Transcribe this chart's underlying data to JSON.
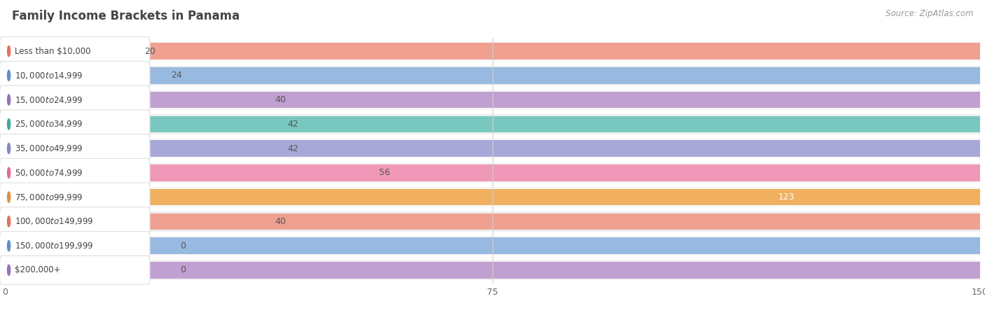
{
  "title": "Family Income Brackets in Panama",
  "source": "Source: ZipAtlas.com",
  "categories": [
    "Less than $10,000",
    "$10,000 to $14,999",
    "$15,000 to $24,999",
    "$25,000 to $34,999",
    "$35,000 to $49,999",
    "$50,000 to $74,999",
    "$75,000 to $99,999",
    "$100,000 to $149,999",
    "$150,000 to $199,999",
    "$200,000+"
  ],
  "values": [
    20,
    24,
    40,
    42,
    42,
    56,
    123,
    40,
    0,
    0
  ],
  "bar_colors": [
    "#F0A090",
    "#98BAE0",
    "#C0A0D0",
    "#78C8C0",
    "#A8A8D8",
    "#F098B8",
    "#F0B060",
    "#F0A090",
    "#98BAE0",
    "#C0A0D0"
  ],
  "dot_colors": [
    "#E87060",
    "#6090C8",
    "#9870C0",
    "#40A8A0",
    "#8888C8",
    "#E86898",
    "#E09040",
    "#E07060",
    "#6090C8",
    "#9870C0"
  ],
  "xlim": [
    0,
    150
  ],
  "xticks": [
    0,
    75,
    150
  ],
  "background_color": "#ffffff",
  "row_colors": [
    "#f7f7f7",
    "#efefef"
  ],
  "grid_color": "#d0d0d0",
  "value_label_color": "#555555",
  "title_color": "#444444",
  "source_color": "#999999",
  "label_text_color": "#444444",
  "pill_color": "#ffffff",
  "pill_edge_color": "#e0e0e0"
}
